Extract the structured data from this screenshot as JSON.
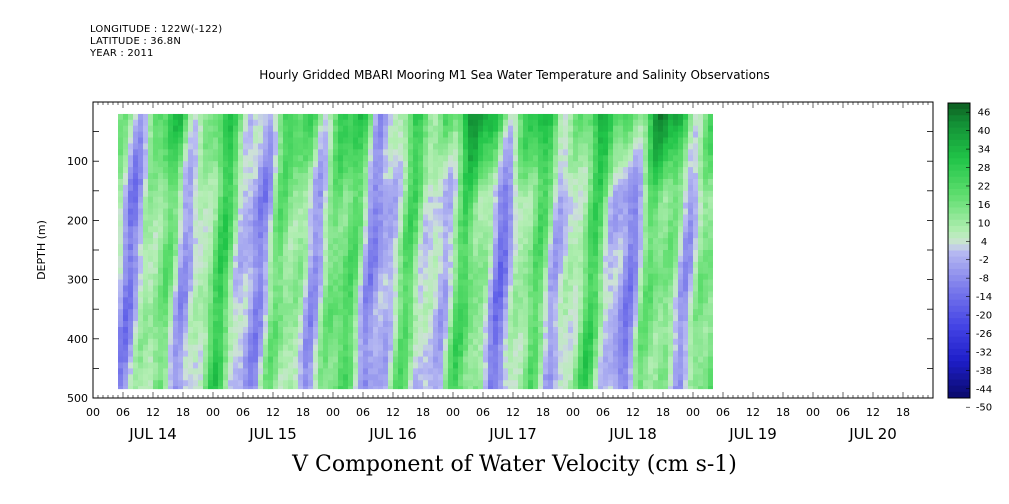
{
  "header": {
    "longitude": "LONGITUDE : 122W(-122)",
    "latitude": "LATITUDE : 36.8N",
    "year": "YEAR : 2011"
  },
  "chart_data": {
    "type": "heatmap",
    "title": "Hourly Gridded MBARI Mooring M1 Sea Water Temperature and Salinity Observations",
    "subtitle": "V Component of Water Velocity (cm s-1)",
    "ylabel": "DEPTH (m)",
    "xlabel": "",
    "ylim": [
      500,
      0
    ],
    "yticks": [
      100,
      200,
      300,
      400,
      500
    ],
    "x_hour_ticks": [
      "00",
      "06",
      "12",
      "18",
      "00",
      "06",
      "12",
      "18",
      "00",
      "06",
      "12",
      "18",
      "00",
      "06",
      "12",
      "18",
      "00",
      "06",
      "12",
      "18",
      "00",
      "06",
      "12",
      "18",
      "00",
      "06",
      "12",
      "18"
    ],
    "x_day_labels": [
      "JUL 14",
      "JUL 15",
      "JUL 16",
      "JUL 17",
      "JUL 18",
      "JUL 19",
      "JUL 20"
    ],
    "x_range_hours": [
      0,
      168
    ],
    "data_extent": {
      "start_hour": 5,
      "end_hour": 124,
      "min_depth": 20,
      "max_depth": 485
    },
    "colorbar": {
      "levels": [
        "46",
        "40",
        "34",
        "28",
        "22",
        "16",
        "10",
        "4",
        "-2",
        "-8",
        "-14",
        "-20",
        "-26",
        "-32",
        "-38",
        "-44",
        "-50"
      ],
      "colors": {
        "strong_positive": "#0b3d12",
        "positive": "#18c040",
        "weak_positive": "#b8eeb8",
        "weak_negative": "#b8baf0",
        "negative": "#3c3ce8",
        "strong_negative": "#0a0a6a"
      }
    },
    "grid": false
  }
}
